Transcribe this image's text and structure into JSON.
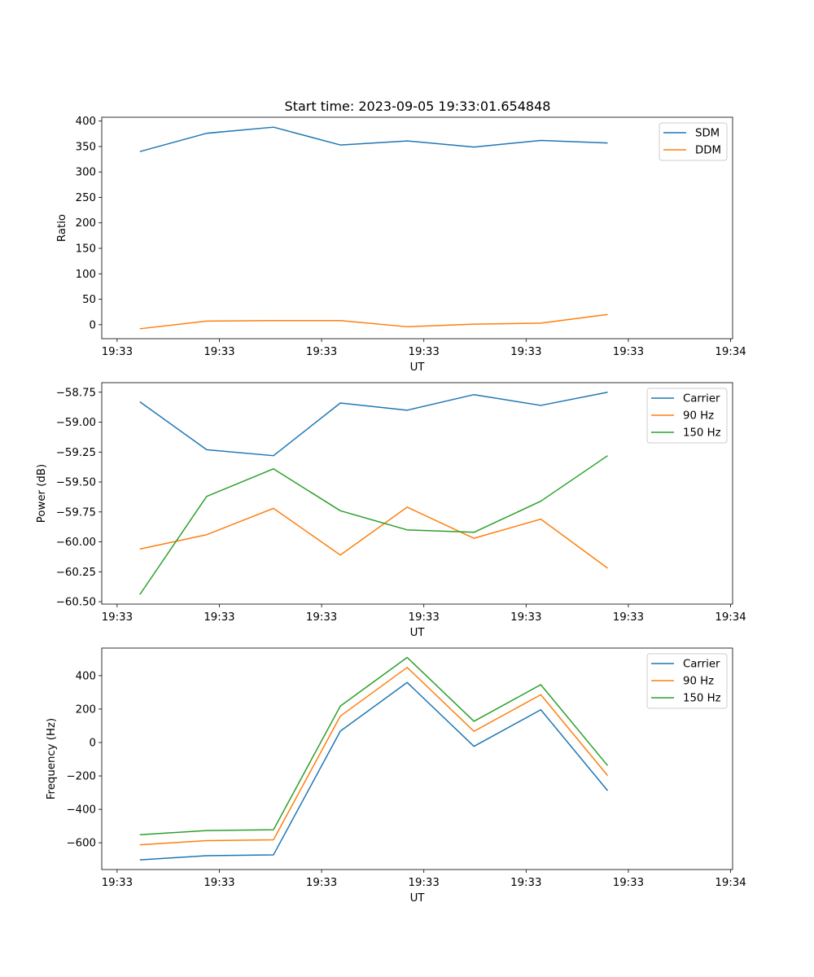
{
  "figure_title": "Start time: 2023-09-05 19:33:01.654848",
  "chart_data": [
    {
      "type": "line",
      "title": "Start time: 2023-09-05 19:33:01.654848",
      "xlabel": "UT",
      "ylabel": "Ratio",
      "xlim": [
        -0.57,
        8.87
      ],
      "ylim": [
        -27.5,
        407.5
      ],
      "x_ticks": [
        {
          "v": -0.34,
          "label": "19:33"
        },
        {
          "v": 1.19,
          "label": "19:33"
        },
        {
          "v": 2.72,
          "label": "19:33"
        },
        {
          "v": 4.25,
          "label": "19:33"
        },
        {
          "v": 5.78,
          "label": "19:33"
        },
        {
          "v": 7.31,
          "label": "19:33"
        },
        {
          "v": 8.84,
          "label": "19:34"
        }
      ],
      "y_ticks": [
        {
          "v": 0,
          "label": "0"
        },
        {
          "v": 50,
          "label": "50"
        },
        {
          "v": 100,
          "label": "100"
        },
        {
          "v": 150,
          "label": "150"
        },
        {
          "v": 200,
          "label": "200"
        },
        {
          "v": 250,
          "label": "250"
        },
        {
          "v": 300,
          "label": "300"
        },
        {
          "v": 350,
          "label": "350"
        },
        {
          "v": 400,
          "label": "400"
        }
      ],
      "x": [
        0,
        1,
        2,
        3,
        4,
        5,
        6,
        7
      ],
      "legend": "upper right",
      "series": [
        {
          "name": "SDM",
          "color": "#1f77b4",
          "values": [
            340,
            376,
            388,
            353,
            361,
            349,
            362,
            357
          ]
        },
        {
          "name": "DDM",
          "color": "#ff7f0e",
          "values": [
            -8,
            7,
            8,
            8,
            -4,
            1,
            3,
            20
          ]
        }
      ]
    },
    {
      "type": "line",
      "title": "",
      "xlabel": "UT",
      "ylabel": "Power (dB)",
      "xlim": [
        -0.57,
        8.87
      ],
      "ylim": [
        -60.52,
        -58.67
      ],
      "x_ticks": [
        {
          "v": -0.34,
          "label": "19:33"
        },
        {
          "v": 1.19,
          "label": "19:33"
        },
        {
          "v": 2.72,
          "label": "19:33"
        },
        {
          "v": 4.25,
          "label": "19:33"
        },
        {
          "v": 5.78,
          "label": "19:33"
        },
        {
          "v": 7.31,
          "label": "19:33"
        },
        {
          "v": 8.84,
          "label": "19:34"
        }
      ],
      "y_ticks": [
        {
          "v": -60.5,
          "label": "−60.50"
        },
        {
          "v": -60.25,
          "label": "−60.25"
        },
        {
          "v": -60.0,
          "label": "−60.00"
        },
        {
          "v": -59.75,
          "label": "−59.75"
        },
        {
          "v": -59.5,
          "label": "−59.50"
        },
        {
          "v": -59.25,
          "label": "−59.25"
        },
        {
          "v": -59.0,
          "label": "−59.00"
        },
        {
          "v": -58.75,
          "label": "−58.75"
        }
      ],
      "x": [
        0,
        1,
        2,
        3,
        4,
        5,
        6,
        7
      ],
      "legend": "upper right",
      "series": [
        {
          "name": "Carrier",
          "color": "#1f77b4",
          "values": [
            -58.83,
            -59.23,
            -59.28,
            -58.84,
            -58.9,
            -58.77,
            -58.86,
            -58.75
          ]
        },
        {
          "name": "90 Hz",
          "color": "#ff7f0e",
          "values": [
            -60.06,
            -59.94,
            -59.72,
            -60.11,
            -59.71,
            -59.97,
            -59.81,
            -60.22
          ]
        },
        {
          "name": "150 Hz",
          "color": "#2ca02c",
          "values": [
            -60.44,
            -59.62,
            -59.39,
            -59.74,
            -59.9,
            -59.92,
            -59.66,
            -59.28
          ]
        }
      ]
    },
    {
      "type": "line",
      "title": "",
      "xlabel": "UT",
      "ylabel": "Frequency (Hz)",
      "xlim": [
        -0.57,
        8.87
      ],
      "ylim": [
        -760,
        565
      ],
      "x_ticks": [
        {
          "v": -0.34,
          "label": "19:33"
        },
        {
          "v": 1.19,
          "label": "19:33"
        },
        {
          "v": 2.72,
          "label": "19:33"
        },
        {
          "v": 4.25,
          "label": "19:33"
        },
        {
          "v": 5.78,
          "label": "19:33"
        },
        {
          "v": 7.31,
          "label": "19:33"
        },
        {
          "v": 8.84,
          "label": "19:34"
        }
      ],
      "y_ticks": [
        {
          "v": -600,
          "label": "−600"
        },
        {
          "v": -400,
          "label": "−400"
        },
        {
          "v": -200,
          "label": "−200"
        },
        {
          "v": 0,
          "label": "0"
        },
        {
          "v": 200,
          "label": "200"
        },
        {
          "v": 400,
          "label": "400"
        }
      ],
      "x": [
        0,
        1,
        2,
        3,
        4,
        5,
        6,
        7
      ],
      "legend": "upper right",
      "series": [
        {
          "name": "Carrier",
          "color": "#1f77b4",
          "values": [
            -702,
            -677,
            -672,
            68,
            359,
            -23,
            196,
            -288
          ]
        },
        {
          "name": "90 Hz",
          "color": "#ff7f0e",
          "values": [
            -612,
            -587,
            -582,
            158,
            449,
            67,
            286,
            -198
          ]
        },
        {
          "name": "150 Hz",
          "color": "#2ca02c",
          "values": [
            -552,
            -527,
            -522,
            218,
            509,
            127,
            346,
            -138
          ]
        }
      ]
    }
  ]
}
